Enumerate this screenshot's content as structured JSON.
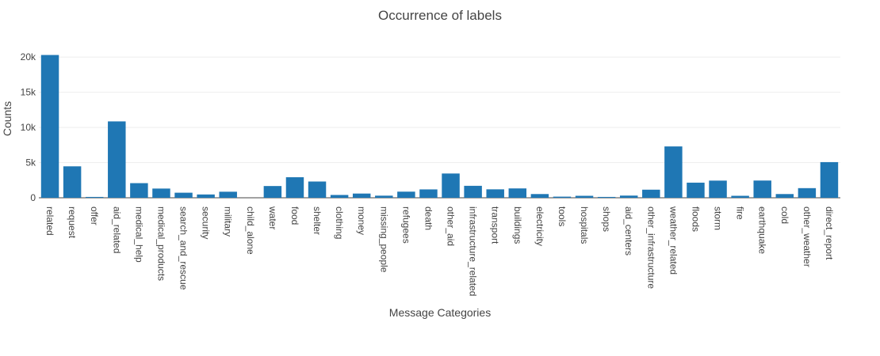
{
  "chart_data": {
    "type": "bar",
    "title": "Occurrence of labels",
    "xlabel": "Message Categories",
    "ylabel": "Counts",
    "categories": [
      "related",
      "request",
      "offer",
      "aid_related",
      "medical_help",
      "medical_products",
      "search_and_rescue",
      "security",
      "military",
      "child_alone",
      "water",
      "food",
      "shelter",
      "clothing",
      "money",
      "missing_people",
      "refugees",
      "death",
      "other_aid",
      "infrastructure_related",
      "transport",
      "buildings",
      "electricity",
      "tools",
      "hospitals",
      "shops",
      "aid_centers",
      "other_infrastructure",
      "weather_related",
      "floods",
      "storm",
      "fire",
      "earthquake",
      "cold",
      "other_weather",
      "direct_report"
    ],
    "values": [
      20300,
      4470,
      120,
      10860,
      2080,
      1310,
      720,
      470,
      860,
      0,
      1670,
      2920,
      2310,
      400,
      600,
      300,
      870,
      1190,
      3450,
      1700,
      1200,
      1330,
      530,
      160,
      280,
      120,
      310,
      1150,
      7300,
      2150,
      2440,
      280,
      2450,
      530,
      1370,
      5070
    ],
    "ylim": [
      0,
      21370
    ],
    "yticks": [
      0,
      5000,
      10000,
      15000,
      20000
    ],
    "ytick_labels": [
      "0",
      "5k",
      "10k",
      "15k",
      "20k"
    ],
    "grid": true,
    "color": "#1f77b4"
  }
}
